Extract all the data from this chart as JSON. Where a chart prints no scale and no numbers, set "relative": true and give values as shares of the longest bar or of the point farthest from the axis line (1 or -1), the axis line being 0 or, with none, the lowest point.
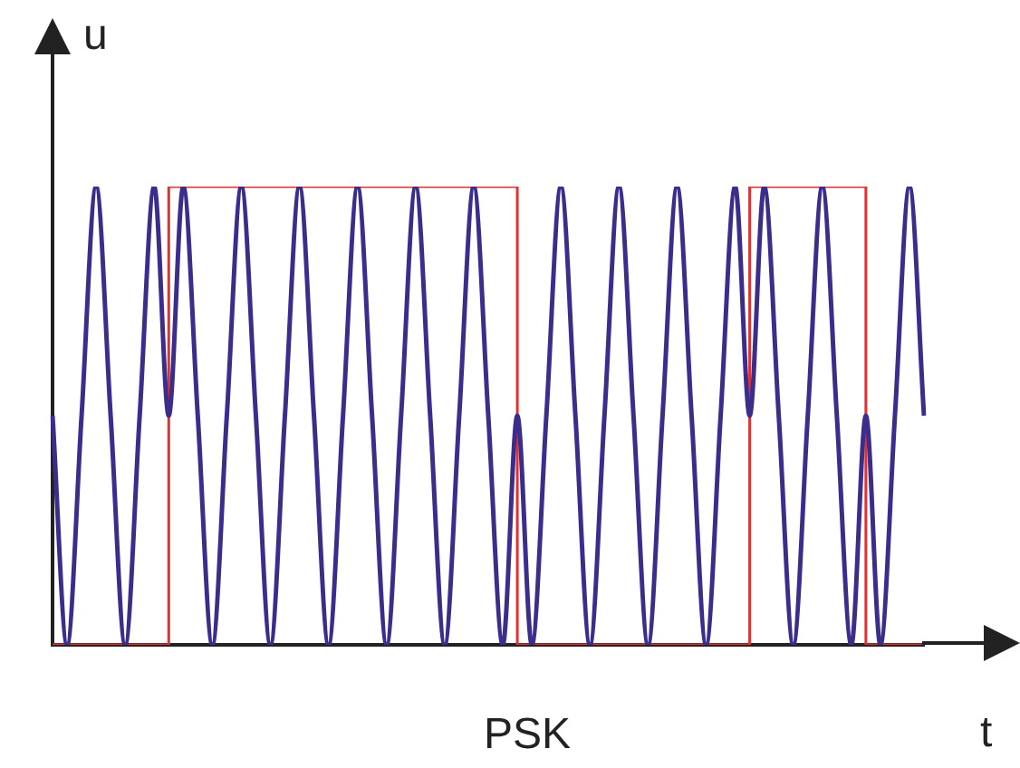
{
  "chart_data": {
    "type": "line",
    "title": "PSK",
    "xlabel": "t",
    "ylabel": "u",
    "relative": true,
    "categories": [
      null,
      null,
      null,
      null,
      null,
      null,
      null,
      null,
      null,
      null,
      null,
      null,
      null,
      null,
      null,
      null,
      null,
      null,
      null,
      null,
      null,
      null,
      null,
      null,
      null,
      null,
      null,
      null,
      null,
      null,
      null,
      null,
      null,
      null,
      null,
      null,
      null,
      null,
      null,
      null,
      null,
      null,
      null,
      null,
      null,
      null,
      null,
      null,
      null,
      null,
      null,
      null,
      null,
      null,
      null,
      null,
      null,
      null,
      null,
      null,
      null
    ],
    "series": [
      {
        "type": "line",
        "color": "#3a2d8c",
        "values": [
          0.5,
          0,
          0.5,
          1,
          0.5,
          0,
          0.5,
          1,
          0.5,
          1,
          0.5,
          0,
          0.5,
          1,
          0.5,
          0,
          0.5,
          1,
          0.5,
          0,
          0.5,
          1,
          0.5,
          0,
          0.5,
          1,
          0.5,
          0,
          0.5,
          1,
          0.5,
          0,
          0.5,
          0,
          0.5,
          1,
          0.5,
          0,
          0.5,
          1,
          0.5,
          0,
          0.5,
          1,
          0.5,
          0,
          0.5,
          1,
          0.5,
          1,
          0.5,
          0,
          0.5,
          1,
          0.5,
          0,
          0.5,
          0,
          0.5,
          1,
          0.5
        ]
      },
      {
        "type": "step",
        "color": "#e03030",
        "values": [
          0,
          0,
          0,
          0,
          0,
          0,
          0,
          0,
          1,
          1,
          1,
          1,
          1,
          1,
          1,
          1,
          1,
          1,
          1,
          1,
          1,
          1,
          1,
          1,
          1,
          1,
          1,
          1,
          1,
          1,
          1,
          1,
          0,
          0,
          0,
          0,
          0,
          0,
          0,
          0,
          0,
          0,
          0,
          0,
          0,
          0,
          0,
          0,
          1,
          1,
          1,
          1,
          1,
          1,
          1,
          1,
          0,
          0,
          0,
          0,
          0
        ]
      }
    ],
    "legend": false,
    "grid": false,
    "marker": "none"
  }
}
